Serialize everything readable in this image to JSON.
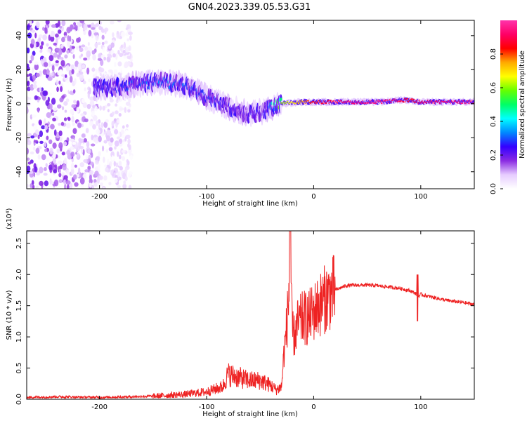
{
  "title": "GN04.2023.339.05.53.G31",
  "chart_data": [
    {
      "type": "heatmap",
      "title": "GN04.2023.339.05.53.G31",
      "xlabel": "Height of straight line (km)",
      "ylabel": "Frequency (Hz)",
      "xlim": [
        -268,
        150
      ],
      "ylim": [
        -50,
        49
      ],
      "xticks": [
        -200,
        -100,
        0,
        100
      ],
      "xticklabels": [
        "-200",
        "-100",
        "0",
        "100"
      ],
      "yticks": [
        -40,
        -20,
        0,
        20,
        40
      ],
      "yticklabels": [
        "-40",
        "-20",
        "0",
        "20",
        "40"
      ],
      "colorbar": {
        "label": "Normalized spectral amplitude",
        "range": [
          0.0,
          1.0
        ],
        "ticks": [
          0.0,
          0.2,
          0.4,
          0.6,
          0.8
        ],
        "ticklabels": [
          "0.0",
          "0.2",
          "0.4",
          "0.6",
          "0.8"
        ],
        "colormap": [
          "#ffffff",
          "#e6ccff",
          "#8a2be2",
          "#3300ff",
          "#0088ff",
          "#00ffff",
          "#00ff66",
          "#66ff00",
          "#ffff00",
          "#ffaa00",
          "#ff0000",
          "#ff0066",
          "#ff33aa"
        ]
      },
      "ridge": {
        "x": [
          -205,
          -180,
          -160,
          -140,
          -120,
          -100,
          -80,
          -60,
          -45,
          -30,
          -10,
          0,
          20,
          60,
          80,
          90,
          100,
          150
        ],
        "frequency": [
          9,
          10,
          12,
          13,
          11,
          4,
          -2,
          -6,
          -4,
          0,
          1,
          1,
          1,
          1,
          2,
          2,
          1,
          1
        ],
        "amplitude": [
          0.22,
          0.25,
          0.28,
          0.3,
          0.27,
          0.25,
          0.22,
          0.2,
          0.2,
          0.6,
          0.75,
          0.85,
          0.9,
          0.95,
          0.9,
          0.85,
          0.9,
          0.95
        ]
      },
      "noise_region": {
        "x_range": [
          -268,
          -170
        ],
        "frequency_range": [
          -50,
          49
        ]
      }
    },
    {
      "type": "line",
      "xlabel": "Height of straight line (km)",
      "ylabel": "SNR (10 * v/v)",
      "y_multiplier": "(x10⁴)",
      "xlim": [
        -268,
        150
      ],
      "ylim": [
        0,
        2.7
      ],
      "xticks": [
        -200,
        -100,
        0,
        100
      ],
      "xticklabels": [
        "-200",
        "-100",
        "0",
        "100"
      ],
      "yticks": [
        0,
        0.5,
        1.0,
        1.5,
        2.0,
        2.5
      ],
      "yticklabels": [
        "0.0",
        "0.5",
        "1.0",
        "1.5",
        "2.0",
        "2.5"
      ],
      "color": "#ee2222",
      "series": [
        {
          "x": [
            -268,
            -240,
            -200,
            -170,
            -150,
            -120,
            -100,
            -85,
            -80,
            -70,
            -60,
            -50,
            -40,
            -35,
            -30,
            -28,
            -25,
            -22,
            -20,
            -18,
            -15,
            -10,
            -5,
            0,
            10,
            20,
            30,
            40,
            50,
            60,
            70,
            80,
            90,
            95,
            98,
            100,
            110,
            120,
            130,
            140,
            150
          ],
          "y": [
            0.03,
            0.04,
            0.03,
            0.04,
            0.05,
            0.08,
            0.12,
            0.2,
            0.4,
            0.35,
            0.3,
            0.3,
            0.22,
            0.15,
            0.2,
            0.7,
            1.2,
            2.0,
            1.1,
            1.0,
            1.2,
            1.3,
            1.3,
            1.4,
            1.6,
            1.75,
            1.82,
            1.83,
            1.83,
            1.82,
            1.8,
            1.78,
            1.74,
            1.7,
            1.65,
            1.68,
            1.64,
            1.6,
            1.57,
            1.55,
            1.52
          ]
        }
      ]
    }
  ]
}
